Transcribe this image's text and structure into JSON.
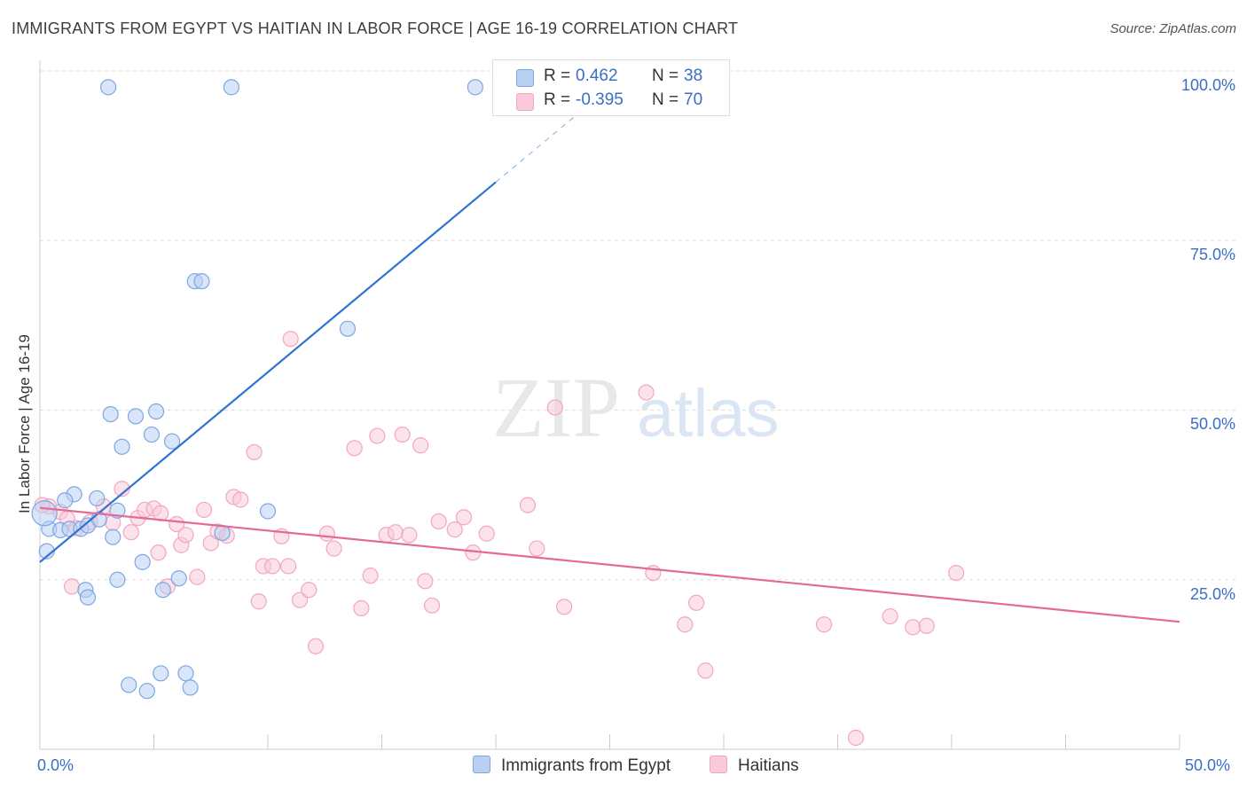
{
  "header": {
    "title": "IMMIGRANTS FROM EGYPT VS HAITIAN IN LABOR FORCE | AGE 16-19 CORRELATION CHART",
    "source": "Source: ZipAtlas.com"
  },
  "watermark": {
    "zip": "ZIP",
    "atlas": "atlas"
  },
  "legend": {
    "rows": [
      {
        "r_label": "R =",
        "r_value": "0.462",
        "n_label": "N =",
        "n_value": "38"
      },
      {
        "r_label": "R =",
        "r_value": "-0.395",
        "n_label": "N =",
        "n_value": "70"
      }
    ]
  },
  "bottom_legend": {
    "series1": "Immigrants from Egypt",
    "series2": "Haitians"
  },
  "axes": {
    "x_min_label": "0.0%",
    "x_max_label": "50.0%",
    "y_ticks": [
      "100.0%",
      "75.0%",
      "50.0%",
      "25.0%"
    ]
  },
  "chart_data": {
    "type": "scatter",
    "title": "IMMIGRANTS FROM EGYPT VS HAITIAN IN LABOR FORCE | AGE 16-19 CORRELATION CHART",
    "xlabel": "",
    "ylabel": "In Labor Force | Age 16-19",
    "xlim": [
      0,
      50
    ],
    "ylim": [
      0,
      100
    ],
    "grid": true,
    "legend_position": "top-center",
    "colors": {
      "egypt": "#7da7e3",
      "egypt_line": "#2f74d0",
      "haiti": "#f2a7bf",
      "haiti_line": "#e46a96"
    },
    "series": [
      {
        "name": "Immigrants from Egypt",
        "trend": {
          "x0": 0,
          "y0": 27.6,
          "x1": 20,
          "y1": 83.6,
          "dash_to": {
            "x": 24,
            "y": 94.8
          }
        },
        "points": [
          [
            3.0,
            97.6
          ],
          [
            8.4,
            97.6
          ],
          [
            19.1,
            97.6
          ],
          [
            6.8,
            69.0
          ],
          [
            7.1,
            69.0
          ],
          [
            13.5,
            62.0
          ],
          [
            3.1,
            49.4
          ],
          [
            4.2,
            49.1
          ],
          [
            5.1,
            49.8
          ],
          [
            4.9,
            46.4
          ],
          [
            5.8,
            45.4
          ],
          [
            3.6,
            44.6
          ],
          [
            1.5,
            37.6
          ],
          [
            1.1,
            36.7
          ],
          [
            2.5,
            37.0
          ],
          [
            10.0,
            35.1
          ],
          [
            3.4,
            35.2
          ],
          [
            0.4,
            32.5
          ],
          [
            0.9,
            32.3
          ],
          [
            1.3,
            32.5
          ],
          [
            1.8,
            32.5
          ],
          [
            2.1,
            33.0
          ],
          [
            2.6,
            33.9
          ],
          [
            8.0,
            31.9
          ],
          [
            3.2,
            31.3
          ],
          [
            0.3,
            29.2
          ],
          [
            4.5,
            27.6
          ],
          [
            6.1,
            25.2
          ],
          [
            3.4,
            25.0
          ],
          [
            2.0,
            23.5
          ],
          [
            5.4,
            23.5
          ],
          [
            2.1,
            22.4
          ],
          [
            3.9,
            9.5
          ],
          [
            4.7,
            8.6
          ],
          [
            5.3,
            11.2
          ],
          [
            6.4,
            11.2
          ],
          [
            6.6,
            9.1
          ],
          [
            0.2,
            34.8
          ]
        ]
      },
      {
        "name": "Haitians",
        "trend": {
          "x0": 0,
          "y0": 35.6,
          "x1": 50,
          "y1": 18.8
        },
        "points": [
          [
            0.4,
            35.8
          ],
          [
            0.9,
            35.0
          ],
          [
            1.2,
            34.0
          ],
          [
            1.6,
            32.6
          ],
          [
            2.2,
            33.5
          ],
          [
            2.8,
            35.8
          ],
          [
            3.2,
            33.4
          ],
          [
            3.6,
            38.4
          ],
          [
            4.0,
            32.0
          ],
          [
            4.3,
            34.1
          ],
          [
            4.6,
            35.3
          ],
          [
            5.0,
            35.5
          ],
          [
            5.3,
            34.8
          ],
          [
            1.4,
            24.0
          ],
          [
            5.2,
            29.0
          ],
          [
            5.6,
            24.0
          ],
          [
            6.0,
            33.2
          ],
          [
            6.2,
            30.1
          ],
          [
            6.4,
            31.6
          ],
          [
            6.9,
            25.4
          ],
          [
            7.2,
            35.3
          ],
          [
            7.5,
            30.4
          ],
          [
            7.8,
            32.1
          ],
          [
            8.2,
            31.5
          ],
          [
            8.5,
            37.2
          ],
          [
            8.8,
            36.8
          ],
          [
            9.4,
            43.8
          ],
          [
            9.6,
            21.8
          ],
          [
            9.8,
            27.0
          ],
          [
            10.2,
            27.0
          ],
          [
            10.6,
            31.4
          ],
          [
            10.9,
            27.0
          ],
          [
            11.4,
            22.0
          ],
          [
            11.8,
            23.5
          ],
          [
            12.1,
            15.2
          ],
          [
            12.6,
            31.8
          ],
          [
            12.9,
            29.6
          ],
          [
            13.8,
            44.4
          ],
          [
            14.1,
            20.8
          ],
          [
            14.5,
            25.6
          ],
          [
            14.8,
            46.2
          ],
          [
            15.2,
            31.6
          ],
          [
            15.6,
            32.0
          ],
          [
            15.9,
            46.4
          ],
          [
            16.2,
            31.6
          ],
          [
            16.7,
            44.8
          ],
          [
            16.9,
            24.8
          ],
          [
            17.2,
            21.2
          ],
          [
            17.5,
            33.6
          ],
          [
            18.2,
            32.4
          ],
          [
            18.6,
            34.2
          ],
          [
            19.0,
            29.0
          ],
          [
            19.6,
            31.8
          ],
          [
            21.4,
            36.0
          ],
          [
            21.8,
            29.6
          ],
          [
            22.6,
            50.4
          ],
          [
            23.0,
            21.0
          ],
          [
            26.6,
            52.6
          ],
          [
            26.9,
            26.0
          ],
          [
            28.3,
            18.4
          ],
          [
            28.8,
            21.6
          ],
          [
            29.2,
            11.6
          ],
          [
            34.4,
            18.4
          ],
          [
            35.8,
            1.7
          ],
          [
            37.3,
            19.6
          ],
          [
            38.3,
            18.0
          ],
          [
            38.9,
            18.2
          ],
          [
            40.2,
            26.0
          ],
          [
            11.0,
            60.5
          ],
          [
            0.1,
            36.0
          ]
        ]
      }
    ]
  }
}
